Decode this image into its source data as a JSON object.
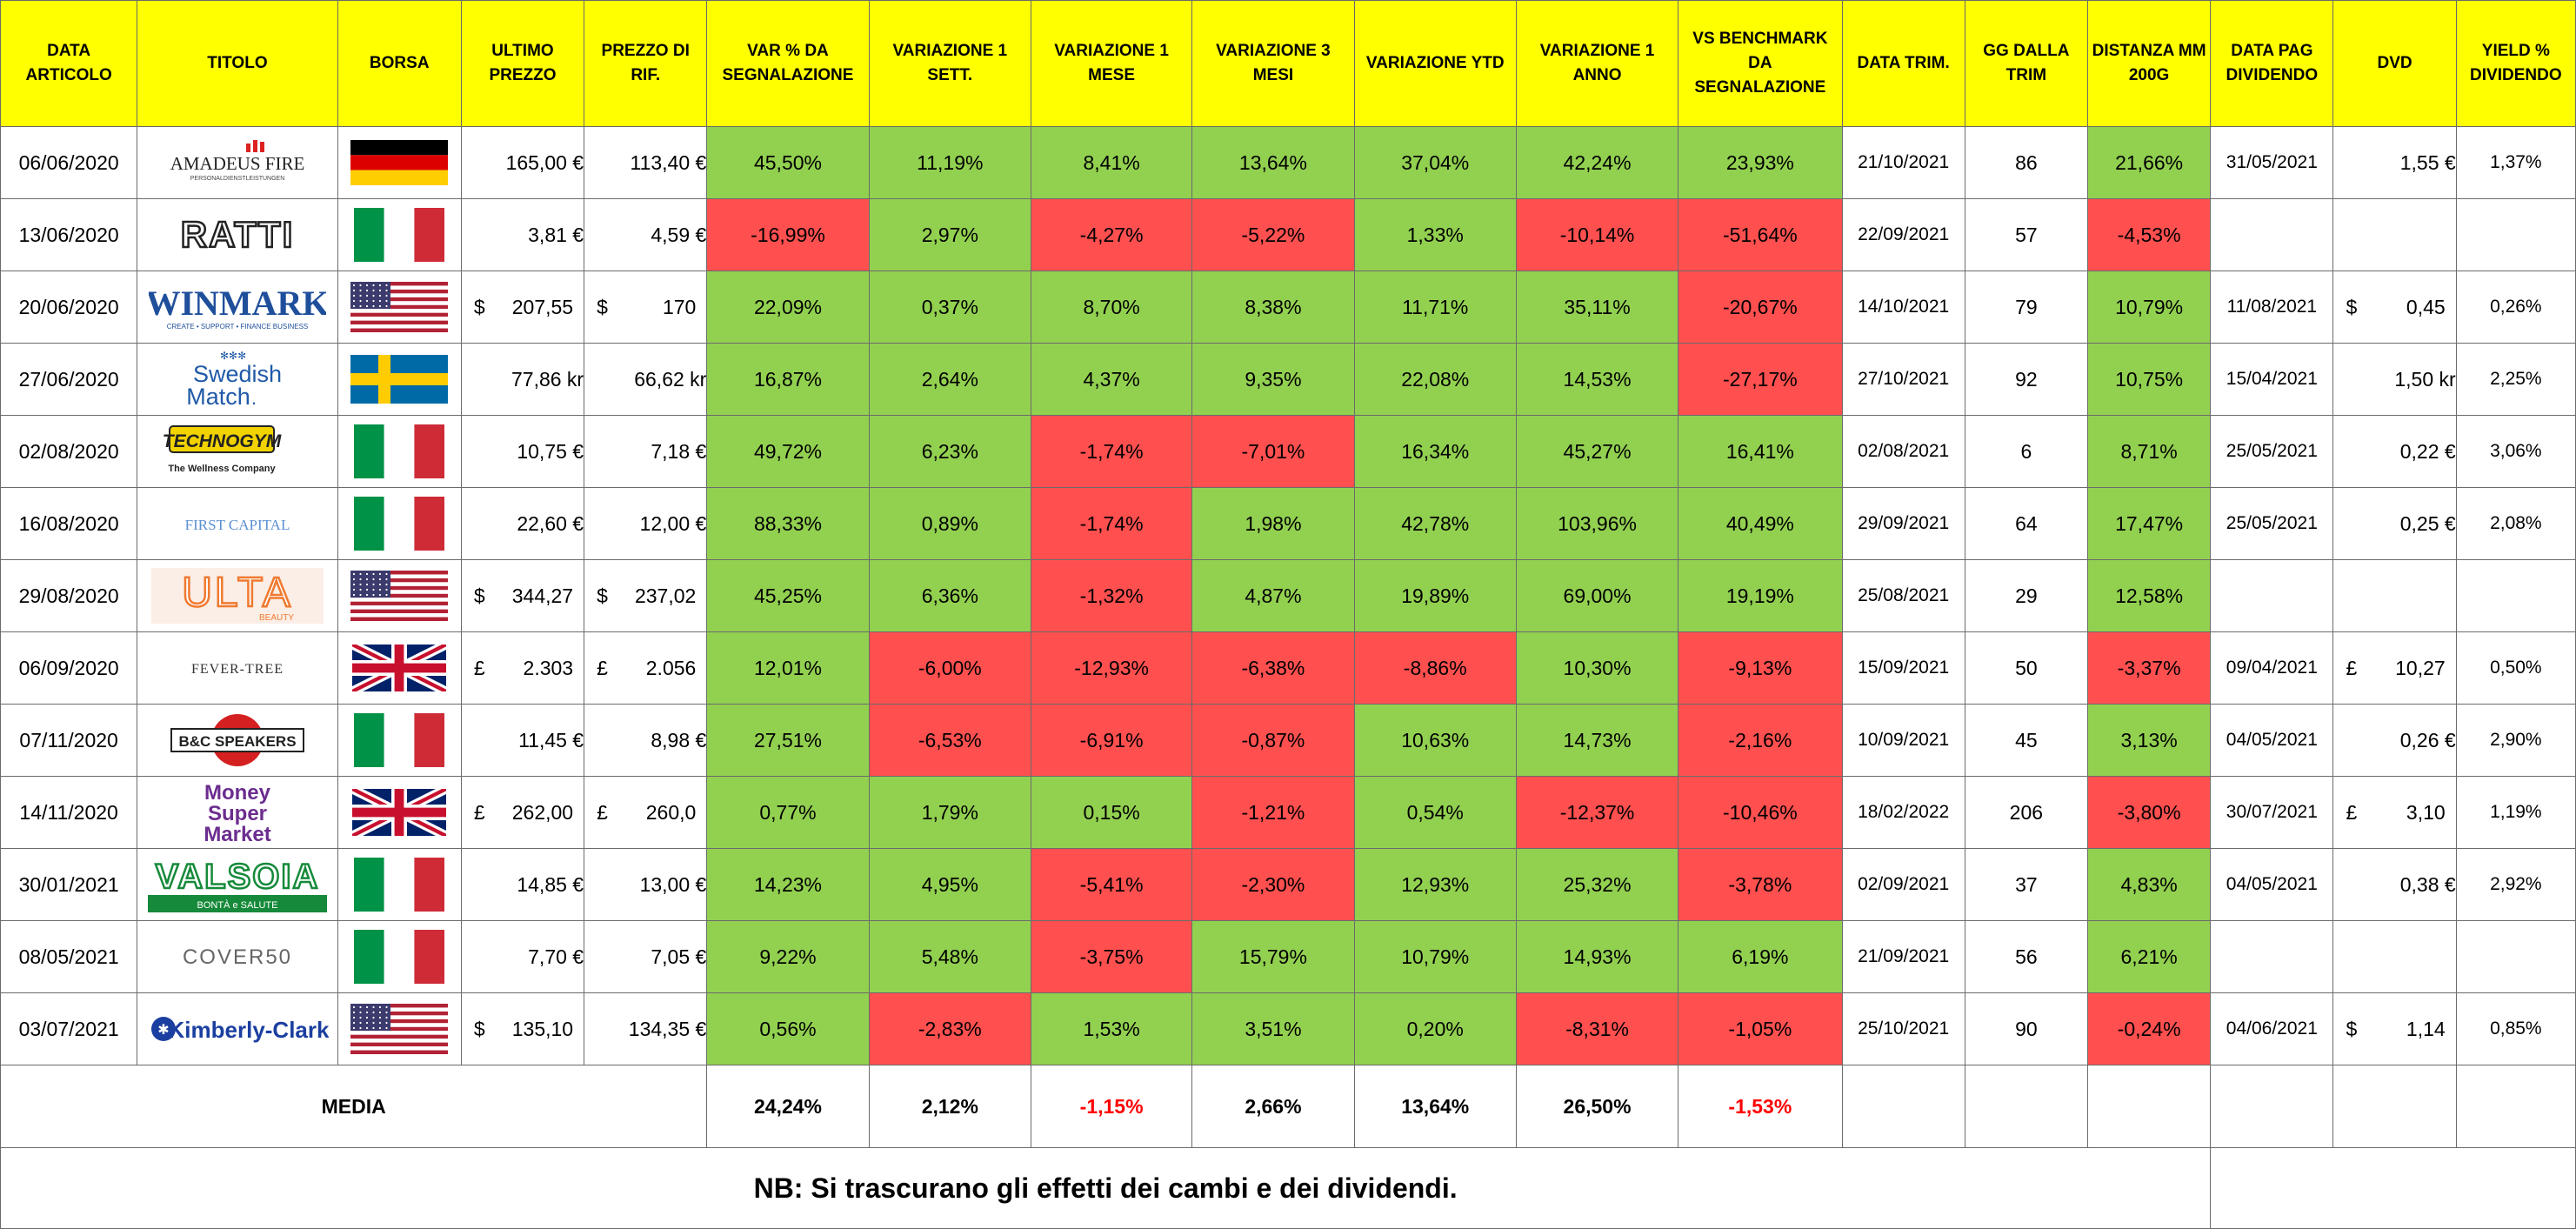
{
  "headers": [
    "DATA ARTICOLO",
    "TITOLO",
    "BORSA",
    "ULTIMO PREZZO",
    "PREZZO DI RIF.",
    "VAR % DA SEGNALAZIONE",
    "VARIAZIONE 1 SETT.",
    "VARIAZIONE 1 MESE",
    "VARIAZIONE 3 MESI",
    "VARIAZIONE YTD",
    "VARIAZIONE 1 ANNO",
    "VS BENCHMARK DA SEGNALAZIONE",
    "DATA TRIM.",
    "GG DALLA TRIM",
    "DISTANZA MM 200G",
    "DATA PAG DIVIDENDO",
    "DVD",
    "YIELD % DIVIDENDO"
  ],
  "colors": {
    "header_bg": "#ffff00",
    "positive": "#92d050",
    "negative": "#ff4f4f",
    "negative_text": "#ff0000",
    "grid": "#6b6b6b"
  },
  "rows": [
    {
      "date": "06/06/2020",
      "logo": {
        "icon": "amadeus-fire-logo",
        "text": "AMADEUS FIRE",
        "sub": "PERSONALDIENSTLEISTUNGEN"
      },
      "flag": "germany",
      "last_price": "165,00 €",
      "ref_price": "113,40 €",
      "var": "45,50%",
      "var_s": "pos",
      "w1": "11,19%",
      "w1_s": "pos",
      "m1": "8,41%",
      "m1_s": "pos",
      "m3": "13,64%",
      "m3_s": "pos",
      "ytd": "37,04%",
      "ytd_s": "pos",
      "y1": "42,24%",
      "y1_s": "pos",
      "bench": "23,93%",
      "bench_s": "pos",
      "trim_date": "21/10/2021",
      "gg": "86",
      "mm200": "21,66%",
      "mm200_s": "pos",
      "div_date": "31/05/2021",
      "dvd": "1,55 €",
      "yield": "1,37%"
    },
    {
      "date": "13/06/2020",
      "logo": {
        "icon": "ratti-logo",
        "text": "RATTI",
        "sub": ""
      },
      "flag": "italy",
      "last_price": "3,81 €",
      "ref_price": "4,59 €",
      "var": "-16,99%",
      "var_s": "neg",
      "w1": "2,97%",
      "w1_s": "pos",
      "m1": "-4,27%",
      "m1_s": "neg",
      "m3": "-5,22%",
      "m3_s": "neg",
      "ytd": "1,33%",
      "ytd_s": "pos",
      "y1": "-10,14%",
      "y1_s": "neg",
      "bench": "-51,64%",
      "bench_s": "neg",
      "trim_date": "22/09/2021",
      "gg": "57",
      "mm200": "-4,53%",
      "mm200_s": "neg",
      "div_date": "",
      "dvd": "",
      "yield": ""
    },
    {
      "date": "20/06/2020",
      "logo": {
        "icon": "winmark-logo",
        "text": "WINMARK",
        "sub": "CREATE • SUPPORT • FINANCE BUSINESS"
      },
      "flag": "usa",
      "last_price": {
        "sym": "$",
        "num": "207,55"
      },
      "ref_price": {
        "sym": "$",
        "num": "170"
      },
      "var": "22,09%",
      "var_s": "pos",
      "w1": "0,37%",
      "w1_s": "pos",
      "m1": "8,70%",
      "m1_s": "pos",
      "m3": "8,38%",
      "m3_s": "pos",
      "ytd": "11,71%",
      "ytd_s": "pos",
      "y1": "35,11%",
      "y1_s": "pos",
      "bench": "-20,67%",
      "bench_s": "neg",
      "trim_date": "14/10/2021",
      "gg": "79",
      "mm200": "10,79%",
      "mm200_s": "pos",
      "div_date": "11/08/2021",
      "dvd": {
        "sym": "$",
        "num": "0,45"
      },
      "yield": "0,26%"
    },
    {
      "date": "27/06/2020",
      "logo": {
        "icon": "swedish-match-logo",
        "text": "Swedish",
        "sub": "Match"
      },
      "flag": "sweden",
      "last_price": "77,86 kr",
      "ref_price": "66,62 kr",
      "var": "16,87%",
      "var_s": "pos",
      "w1": "2,64%",
      "w1_s": "pos",
      "m1": "4,37%",
      "m1_s": "pos",
      "m3": "9,35%",
      "m3_s": "pos",
      "ytd": "22,08%",
      "ytd_s": "pos",
      "y1": "14,53%",
      "y1_s": "pos",
      "bench": "-27,17%",
      "bench_s": "neg",
      "trim_date": "27/10/2021",
      "gg": "92",
      "mm200": "10,75%",
      "mm200_s": "pos",
      "div_date": "15/04/2021",
      "dvd": "1,50 kr",
      "yield": "2,25%"
    },
    {
      "date": "02/08/2020",
      "logo": {
        "icon": "technogym-logo",
        "text": "TECHNOGYM",
        "sub": "The Wellness Company"
      },
      "flag": "italy",
      "last_price": "10,75 €",
      "ref_price": "7,18 €",
      "var": "49,72%",
      "var_s": "pos",
      "w1": "6,23%",
      "w1_s": "pos",
      "m1": "-1,74%",
      "m1_s": "neg",
      "m3": "-7,01%",
      "m3_s": "neg",
      "ytd": "16,34%",
      "ytd_s": "pos",
      "y1": "45,27%",
      "y1_s": "pos",
      "bench": "16,41%",
      "bench_s": "pos",
      "trim_date": "02/08/2021",
      "gg": "6",
      "mm200": "8,71%",
      "mm200_s": "pos",
      "div_date": "25/05/2021",
      "dvd": "0,22 €",
      "yield": "3,06%"
    },
    {
      "date": "16/08/2020",
      "logo": {
        "icon": "first-capital-logo",
        "text": "FIRST CAPITAL",
        "sub": ""
      },
      "flag": "italy",
      "last_price": "22,60 €",
      "ref_price": "12,00 €",
      "var": "88,33%",
      "var_s": "pos",
      "w1": "0,89%",
      "w1_s": "pos",
      "m1": "-1,74%",
      "m1_s": "neg",
      "m3": "1,98%",
      "m3_s": "pos",
      "ytd": "42,78%",
      "ytd_s": "pos",
      "y1": "103,96%",
      "y1_s": "pos",
      "bench": "40,49%",
      "bench_s": "pos",
      "trim_date": "29/09/2021",
      "gg": "64",
      "mm200": "17,47%",
      "mm200_s": "pos",
      "div_date": "25/05/2021",
      "dvd": "0,25 €",
      "yield": "2,08%"
    },
    {
      "date": "29/08/2020",
      "logo": {
        "icon": "ulta-beauty-logo",
        "text": "ULTA",
        "sub": "BEAUTY"
      },
      "flag": "usa",
      "last_price": {
        "sym": "$",
        "num": "344,27"
      },
      "ref_price": {
        "sym": "$",
        "num": "237,02"
      },
      "var": "45,25%",
      "var_s": "pos",
      "w1": "6,36%",
      "w1_s": "pos",
      "m1": "-1,32%",
      "m1_s": "neg",
      "m3": "4,87%",
      "m3_s": "pos",
      "ytd": "19,89%",
      "ytd_s": "pos",
      "y1": "69,00%",
      "y1_s": "pos",
      "bench": "19,19%",
      "bench_s": "pos",
      "trim_date": "25/08/2021",
      "gg": "29",
      "mm200": "12,58%",
      "mm200_s": "pos",
      "div_date": "",
      "dvd": "",
      "yield": ""
    },
    {
      "date": "06/09/2020",
      "logo": {
        "icon": "fever-tree-logo",
        "text": "FEVER-TREE",
        "sub": ""
      },
      "flag": "uk",
      "last_price": {
        "sym": "£",
        "num": "2.303"
      },
      "ref_price": {
        "sym": "£",
        "num": "2.056"
      },
      "var": "12,01%",
      "var_s": "pos",
      "w1": "-6,00%",
      "w1_s": "neg",
      "m1": "-12,93%",
      "m1_s": "neg",
      "m3": "-6,38%",
      "m3_s": "neg",
      "ytd": "-8,86%",
      "ytd_s": "neg",
      "y1": "10,30%",
      "y1_s": "pos",
      "bench": "-9,13%",
      "bench_s": "neg",
      "trim_date": "15/09/2021",
      "gg": "50",
      "mm200": "-3,37%",
      "mm200_s": "neg",
      "div_date": "09/04/2021",
      "dvd": {
        "sym": "£",
        "num": "10,27"
      },
      "yield": "0,50%"
    },
    {
      "date": "07/11/2020",
      "logo": {
        "icon": "bc-speakers-logo",
        "text": "B&C SPEAKERS",
        "sub": ""
      },
      "flag": "italy",
      "last_price": "11,45 €",
      "ref_price": "8,98 €",
      "var": "27,51%",
      "var_s": "pos",
      "w1": "-6,53%",
      "w1_s": "neg",
      "m1": "-6,91%",
      "m1_s": "neg",
      "m3": "-0,87%",
      "m3_s": "neg",
      "ytd": "10,63%",
      "ytd_s": "pos",
      "y1": "14,73%",
      "y1_s": "pos",
      "bench": "-2,16%",
      "bench_s": "neg",
      "trim_date": "10/09/2021",
      "gg": "45",
      "mm200": "3,13%",
      "mm200_s": "pos",
      "div_date": "04/05/2021",
      "dvd": "0,26 €",
      "yield": "2,90%"
    },
    {
      "date": "14/11/2020",
      "logo": {
        "icon": "moneysupermarket-logo",
        "text": "Money",
        "sub": "Super Market"
      },
      "flag": "uk",
      "last_price": {
        "sym": "£",
        "num": "262,00"
      },
      "ref_price": {
        "sym": "£",
        "num": "260,0"
      },
      "var": "0,77%",
      "var_s": "pos",
      "w1": "1,79%",
      "w1_s": "pos",
      "m1": "0,15%",
      "m1_s": "pos",
      "m3": "-1,21%",
      "m3_s": "neg",
      "ytd": "0,54%",
      "ytd_s": "pos",
      "y1": "-12,37%",
      "y1_s": "neg",
      "bench": "-10,46%",
      "bench_s": "neg",
      "trim_date": "18/02/2022",
      "gg": "206",
      "mm200": "-3,80%",
      "mm200_s": "neg",
      "div_date": "30/07/2021",
      "dvd": {
        "sym": "£",
        "num": "3,10"
      },
      "yield": "1,19%"
    },
    {
      "date": "30/01/2021",
      "logo": {
        "icon": "valsoia-logo",
        "text": "VALSOIA",
        "sub": "BONTÀ e SALUTE"
      },
      "flag": "italy",
      "last_price": "14,85 €",
      "ref_price": "13,00 €",
      "var": "14,23%",
      "var_s": "pos",
      "w1": "4,95%",
      "w1_s": "pos",
      "m1": "-5,41%",
      "m1_s": "neg",
      "m3": "-2,30%",
      "m3_s": "neg",
      "ytd": "12,93%",
      "ytd_s": "pos",
      "y1": "25,32%",
      "y1_s": "pos",
      "bench": "-3,78%",
      "bench_s": "neg",
      "trim_date": "02/09/2021",
      "gg": "37",
      "mm200": "4,83%",
      "mm200_s": "pos",
      "div_date": "04/05/2021",
      "dvd": "0,38 €",
      "yield": "2,92%"
    },
    {
      "date": "08/05/2021",
      "logo": {
        "icon": "cover50-logo",
        "text": "COVER50",
        "sub": ""
      },
      "flag": "italy",
      "last_price": "7,70 €",
      "ref_price": "7,05 €",
      "var": "9,22%",
      "var_s": "pos",
      "w1": "5,48%",
      "w1_s": "pos",
      "m1": "-3,75%",
      "m1_s": "neg",
      "m3": "15,79%",
      "m3_s": "pos",
      "ytd": "10,79%",
      "ytd_s": "pos",
      "y1": "14,93%",
      "y1_s": "pos",
      "bench": "6,19%",
      "bench_s": "pos",
      "trim_date": "21/09/2021",
      "gg": "56",
      "mm200": "6,21%",
      "mm200_s": "pos",
      "div_date": "",
      "dvd": "",
      "yield": ""
    },
    {
      "date": "03/07/2021",
      "logo": {
        "icon": "kimberly-clark-logo",
        "text": "Kimberly-Clark",
        "sub": ""
      },
      "flag": "usa",
      "last_price": {
        "sym": "$",
        "num": "135,10"
      },
      "ref_price": "134,35 €",
      "var": "0,56%",
      "var_s": "pos",
      "w1": "-2,83%",
      "w1_s": "neg",
      "m1": "1,53%",
      "m1_s": "pos",
      "m3": "3,51%",
      "m3_s": "pos",
      "ytd": "0,20%",
      "ytd_s": "pos",
      "y1": "-8,31%",
      "y1_s": "neg",
      "bench": "-1,05%",
      "bench_s": "neg",
      "trim_date": "25/10/2021",
      "gg": "90",
      "mm200": "-0,24%",
      "mm200_s": "neg",
      "div_date": "04/06/2021",
      "dvd": {
        "sym": "$",
        "num": "1,14"
      },
      "yield": "0,85%"
    }
  ],
  "average": {
    "label": "MEDIA",
    "var": "24,24%",
    "var_s": "pos",
    "w1": "2,12%",
    "w1_s": "pos",
    "m1": "-1,15%",
    "m1_s": "neg",
    "m3": "2,66%",
    "m3_s": "pos",
    "ytd": "13,64%",
    "ytd_s": "pos",
    "y1": "26,50%",
    "y1_s": "pos",
    "bench": "-1,53%",
    "bench_s": "neg"
  },
  "note": "NB: Si trascurano gli effetti dei cambi e dei dividendi."
}
